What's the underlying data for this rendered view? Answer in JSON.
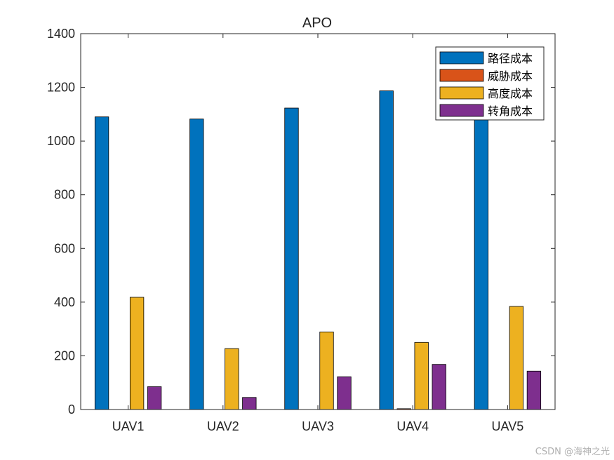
{
  "chart_data": {
    "type": "bar",
    "title": "APO",
    "xlabel": "",
    "ylabel": "",
    "categories": [
      "UAV1",
      "UAV2",
      "UAV3",
      "UAV4",
      "UAV5"
    ],
    "ylim": [
      0,
      1400
    ],
    "yticks": [
      0,
      200,
      400,
      600,
      800,
      1000,
      1200,
      1400
    ],
    "grid": false,
    "legend_position": "top-right",
    "series": [
      {
        "name": "路径成本",
        "color": "#0072BD",
        "values": [
          1090,
          1082,
          1123,
          1187,
          1100
        ]
      },
      {
        "name": "威胁成本",
        "color": "#D95319",
        "values": [
          0,
          0,
          0,
          3,
          0
        ]
      },
      {
        "name": "高度成本",
        "color": "#EDB120",
        "values": [
          418,
          227,
          289,
          250,
          384
        ]
      },
      {
        "name": "转角成本",
        "color": "#7E2F8E",
        "values": [
          85,
          45,
          122,
          168,
          143
        ]
      }
    ]
  },
  "watermark": "CSDN @海神之光"
}
